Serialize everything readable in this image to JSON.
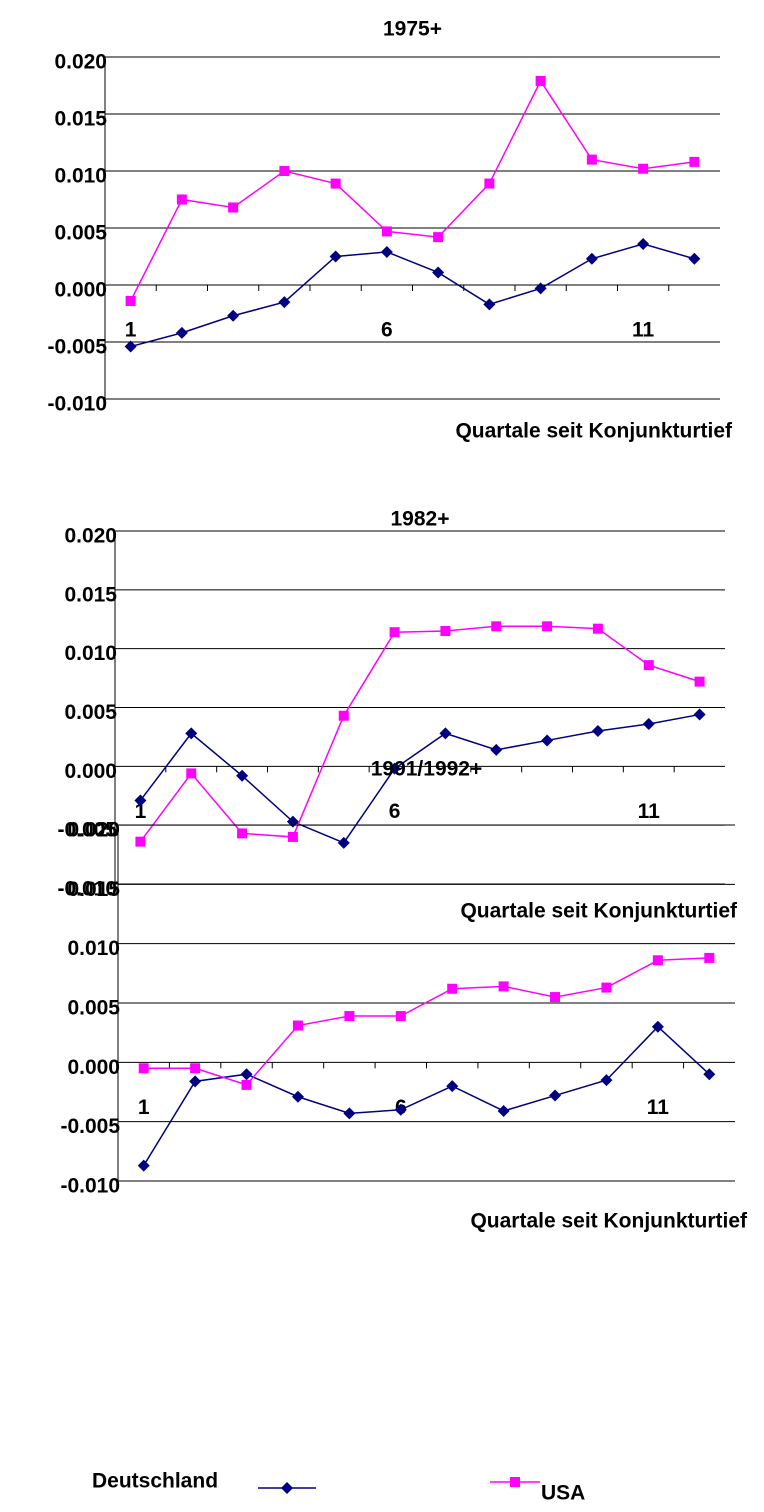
{
  "chart_data": [
    {
      "type": "line",
      "title": "1975+",
      "x_label": "Quartale seit Konjunkturtief",
      "categories": [
        "1",
        null,
        null,
        null,
        null,
        "6",
        null,
        null,
        null,
        null,
        "11",
        null
      ],
      "series": [
        {
          "name": "Deutschland",
          "color": "#000080",
          "marker": "diamond",
          "values": [
            -0.0054,
            -0.0042,
            -0.0027,
            -0.0015,
            0.0025,
            0.0029,
            0.0011,
            -0.0017,
            -0.0003,
            0.0023,
            0.0036,
            0.0023
          ]
        },
        {
          "name": "USA",
          "color": "#ff00ff",
          "marker": "square",
          "values": [
            -0.0014,
            0.0075,
            0.0068,
            0.01,
            0.0089,
            0.0047,
            0.0042,
            0.0089,
            0.0179,
            0.011,
            0.0102,
            0.0108
          ]
        }
      ],
      "ylim": [
        -0.01,
        0.02
      ],
      "yticks": [
        {
          "value": -0.01,
          "label": "-0.010"
        },
        {
          "value": -0.005,
          "label": "-0.005"
        },
        {
          "value": 0,
          "label": "0.000"
        },
        {
          "value": 0.005,
          "label": "0.005"
        },
        {
          "value": 0.01,
          "label": "0.010"
        },
        {
          "value": 0.015,
          "label": "0.015"
        },
        {
          "value": 0.02,
          "label": "0.020"
        }
      ],
      "grid": true
    },
    {
      "type": "line",
      "title": "1982+",
      "x_label": "Quartale seit Konjunkturtief",
      "categories": [
        "1",
        null,
        null,
        null,
        null,
        "6",
        null,
        null,
        null,
        null,
        "11",
        null
      ],
      "series": [
        {
          "name": "Deutschland",
          "color": "#000080",
          "marker": "diamond",
          "values": [
            -0.0029,
            0.0028,
            -0.0008,
            -0.0047,
            -0.0065,
            -0.0002,
            0.0028,
            0.0014,
            0.0022,
            0.003,
            0.0036,
            0.0044
          ]
        },
        {
          "name": "USA",
          "color": "#ff00ff",
          "marker": "square",
          "values": [
            -0.0064,
            -0.0006,
            -0.0057,
            -0.006,
            0.0043,
            0.0114,
            0.0115,
            0.0119,
            0.0119,
            0.0117,
            0.0086,
            0.0072
          ]
        }
      ],
      "ylim": [
        -0.01,
        0.02
      ],
      "yticks": [
        {
          "value": -0.01,
          "label": "-0.010"
        },
        {
          "value": -0.005,
          "label": "-0.005"
        },
        {
          "value": 0,
          "label": "0.000"
        },
        {
          "value": 0.005,
          "label": "0.005"
        },
        {
          "value": 0.01,
          "label": "0.010"
        },
        {
          "value": 0.015,
          "label": "0.015"
        },
        {
          "value": 0.02,
          "label": "0.020"
        }
      ],
      "grid": true
    },
    {
      "type": "line",
      "title": "1991/1992+",
      "x_label": "Quartale seit Konjunkturtief",
      "categories": [
        "1",
        null,
        null,
        null,
        null,
        "6",
        null,
        null,
        null,
        null,
        "11",
        null
      ],
      "series": [
        {
          "name": "Deutschland",
          "color": "#000080",
          "marker": "diamond",
          "values": [
            -0.0087,
            -0.0016,
            -0.001,
            -0.0029,
            -0.0043,
            -0.004,
            -0.002,
            -0.0041,
            -0.0028,
            -0.0015,
            0.003,
            -0.001
          ]
        },
        {
          "name": "USA",
          "color": "#ff00ff",
          "marker": "square",
          "values": [
            -0.0005,
            -0.0005,
            -0.0019,
            0.0031,
            0.0039,
            0.0039,
            0.0062,
            0.0064,
            0.0055,
            0.0063,
            0.0086,
            0.0088
          ]
        }
      ],
      "ylim": [
        -0.01,
        0.02
      ],
      "yticks": [
        {
          "value": -0.01,
          "label": "-0.010"
        },
        {
          "value": -0.005,
          "label": "-0.005"
        },
        {
          "value": 0,
          "label": "0.000"
        },
        {
          "value": 0.005,
          "label": "0.005"
        },
        {
          "value": 0.01,
          "label": "0.010"
        },
        {
          "value": 0.015,
          "label": "0.015"
        },
        {
          "value": 0.02,
          "label": "0.020"
        }
      ],
      "grid": true
    }
  ]
}
